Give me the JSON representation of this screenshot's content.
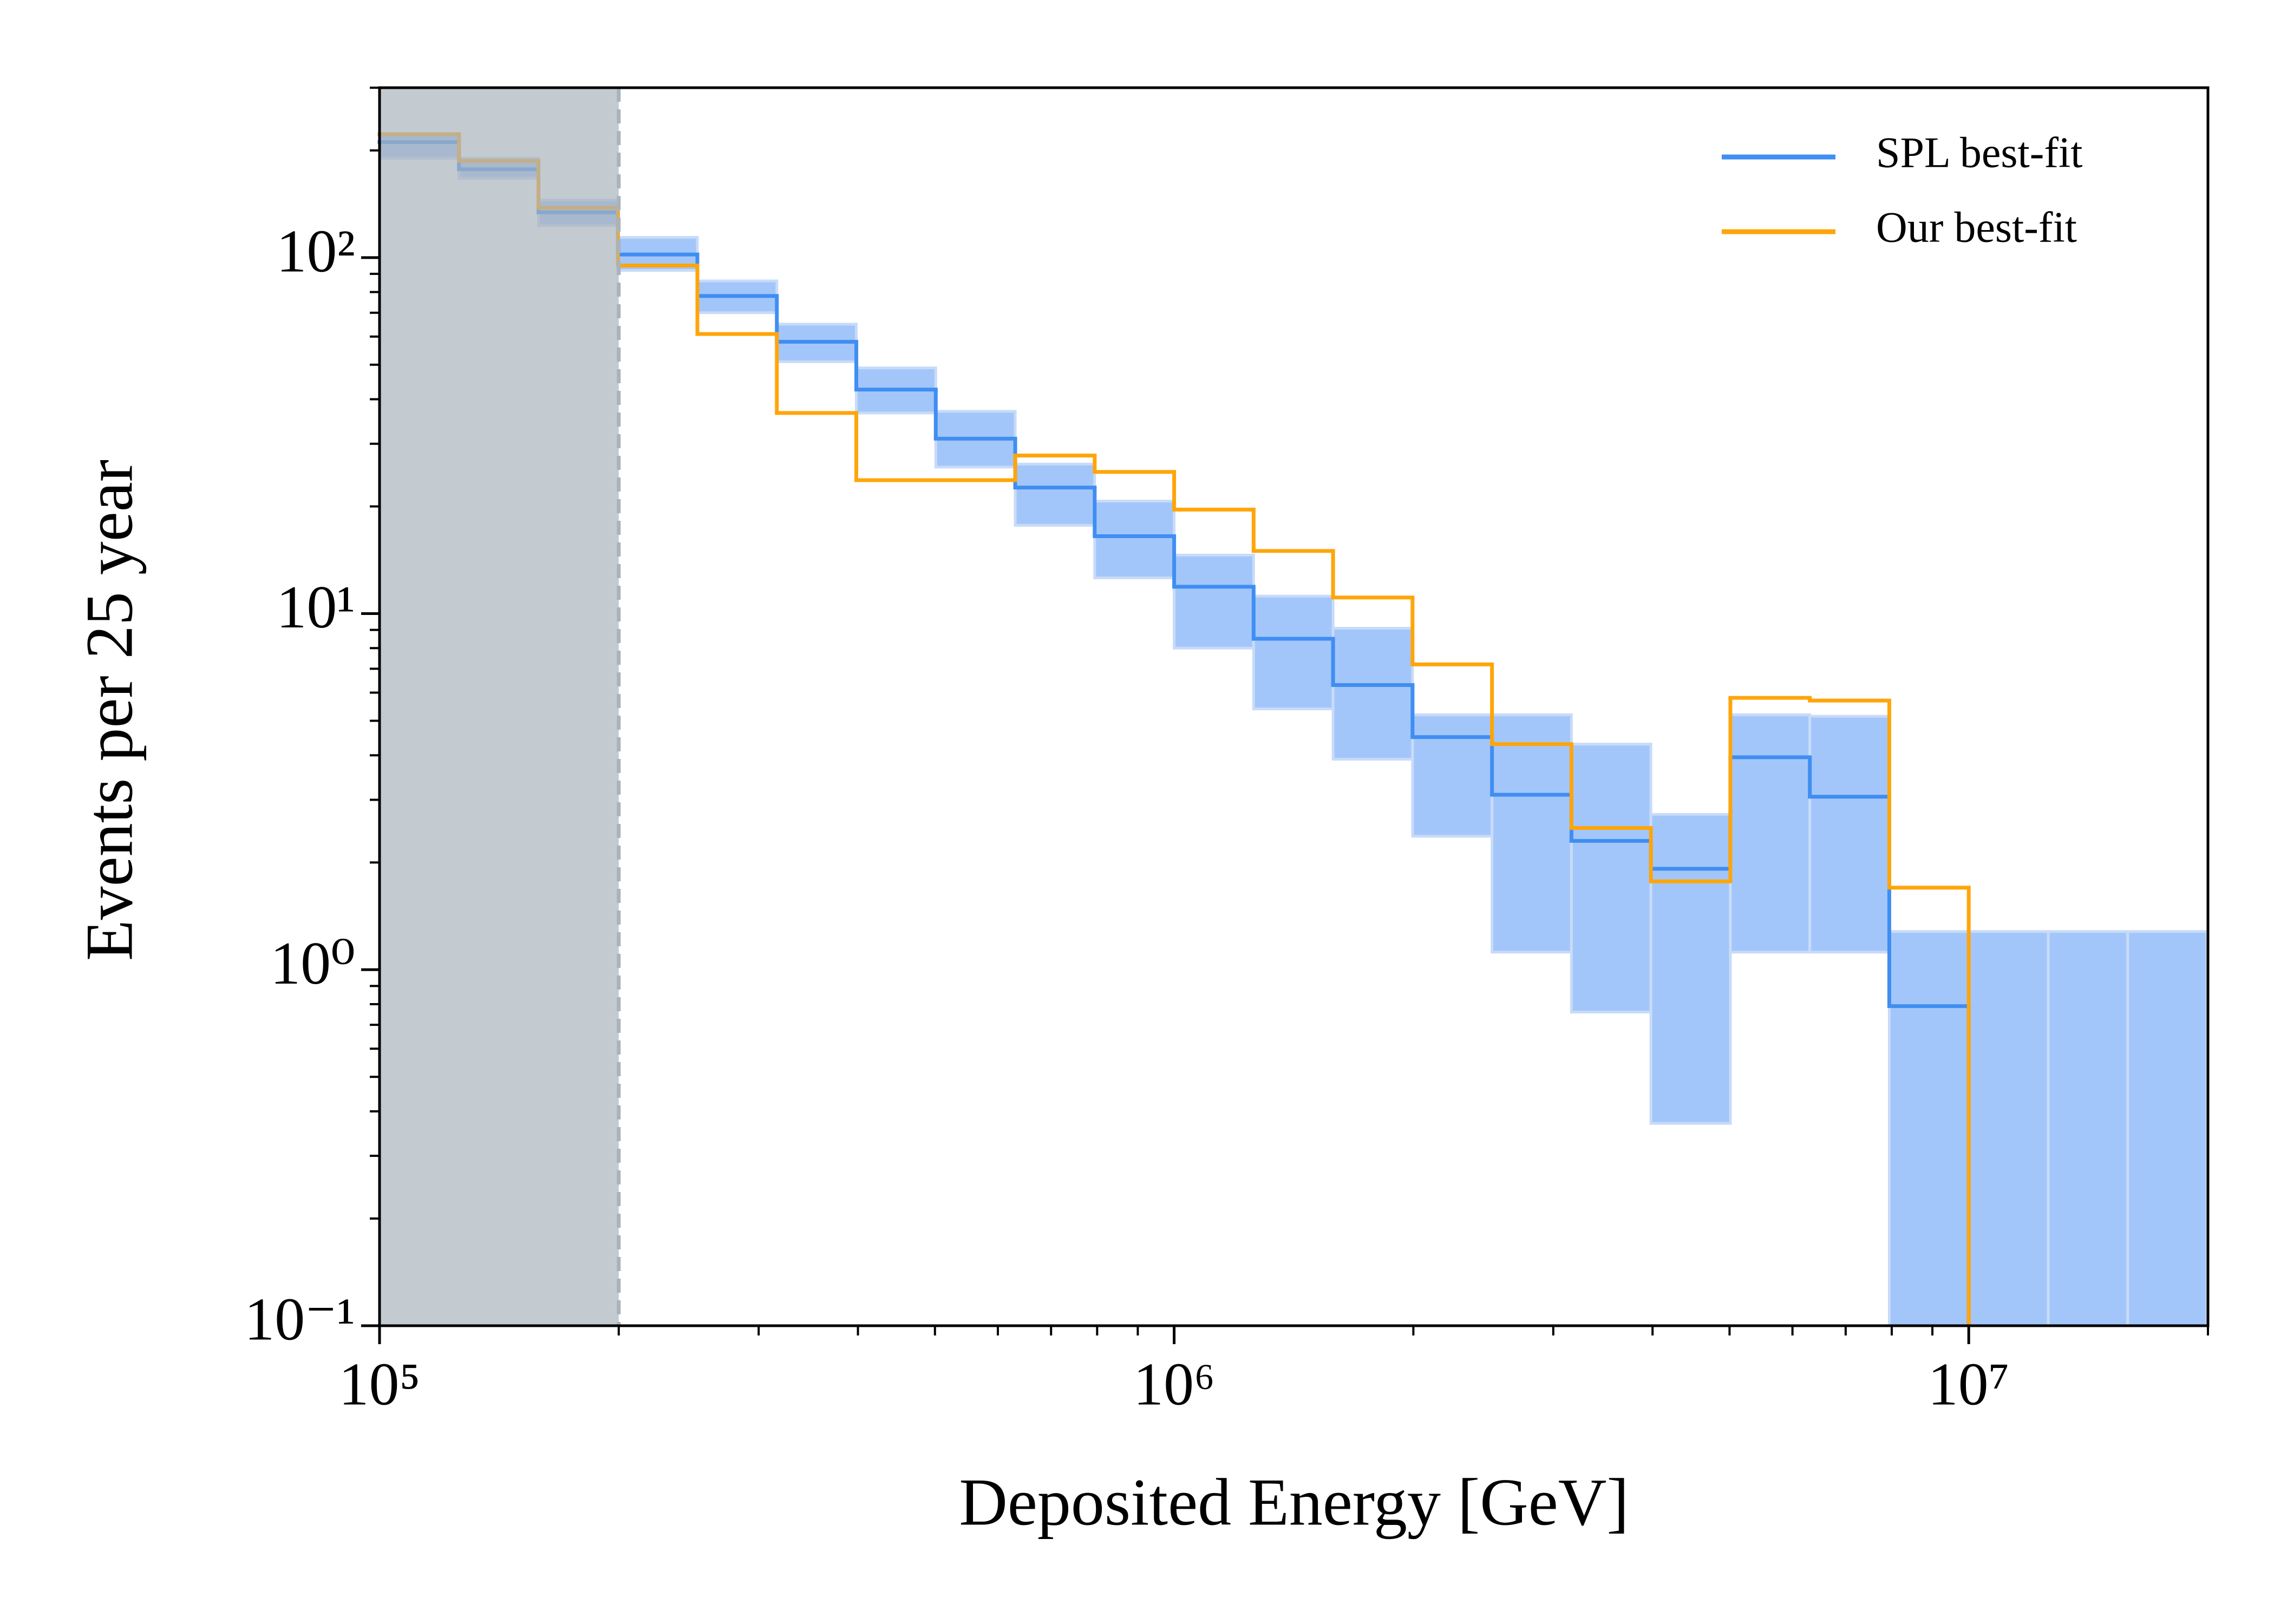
{
  "chart_data": {
    "type": "step-histogram",
    "x_label": "Deposited Energy [GeV]",
    "y_label": "Events per 25 year",
    "xscale": "log",
    "yscale": "log",
    "legend": "upper right",
    "bins": [
      100000,
      125893,
      158489,
      199526,
      251189,
      316228,
      398107,
      501187,
      630957,
      794328,
      1000000,
      1258925,
      1584893,
      1995262,
      2511886,
      3162278,
      3981072,
      5011872,
      6309573,
      7943282,
      10000000,
      12589254,
      15848932,
      19952623
    ],
    "series": [
      {
        "name": "SPL best-fit",
        "color": "#3f8ef2",
        "band_color": "#a3c6fa",
        "values": [
          211,
          177,
          134,
          102,
          78,
          58,
          42.6,
          31,
          22.6,
          16.5,
          11.9,
          8.5,
          6.3,
          4.5,
          3.1,
          2.3,
          1.92,
          3.95,
          3.06,
          0.79,
          null,
          null,
          null
        ],
        "band_lower": [
          190,
          167,
          123,
          92,
          70,
          51,
          36.6,
          25.8,
          17.7,
          12.6,
          8,
          5.4,
          3.9,
          2.37,
          1.12,
          0.76,
          0.37,
          1.12,
          1.12,
          0.1,
          0.1,
          0.1,
          0.1
        ],
        "band_upper": [
          222,
          190,
          145,
          114,
          86,
          65,
          49,
          37,
          26.3,
          20.7,
          14.6,
          11.2,
          9.1,
          5.2,
          5.2,
          4.3,
          2.73,
          5.2,
          5.15,
          1.28,
          1.28,
          1.28,
          1.28
        ]
      },
      {
        "name": "Our best-fit",
        "color": "#ffa50a",
        "values": [
          222,
          187,
          138,
          95,
          61,
          36.6,
          23.7,
          23.7,
          27.8,
          25,
          19.6,
          15,
          11.1,
          7.2,
          4.3,
          2.5,
          1.77,
          5.8,
          5.7,
          1.7,
          null,
          null,
          null
        ]
      }
    ],
    "shaded_region": [
      100000,
      200000
    ],
    "shaded_color": "#aab3bc",
    "xlim": [
      100000,
      20000000
    ],
    "ylim": [
      0.1,
      300
    ],
    "xticks": [
      {
        "value": 100000,
        "label": "10⁵"
      },
      {
        "value": 1000000,
        "label": "10⁶"
      },
      {
        "value": 10000000,
        "label": "10⁷"
      }
    ],
    "yticks": [
      {
        "value": 0.1,
        "label": "10⁻¹"
      },
      {
        "value": 1,
        "label": "10⁰"
      },
      {
        "value": 10,
        "label": "10¹"
      },
      {
        "value": 100,
        "label": "10²"
      }
    ],
    "xminorticks": [
      200000,
      300000,
      400000,
      500000,
      600000,
      700000,
      800000,
      900000,
      2000000,
      3000000,
      4000000,
      5000000,
      6000000,
      7000000,
      8000000,
      9000000,
      20000000
    ],
    "yminorticks": [
      0.2,
      0.3,
      0.4,
      0.5,
      0.6,
      0.7,
      0.8,
      0.9,
      2,
      3,
      4,
      5,
      6,
      7,
      8,
      9,
      20,
      30,
      40,
      50,
      60,
      70,
      80,
      90,
      200,
      300
    ]
  }
}
